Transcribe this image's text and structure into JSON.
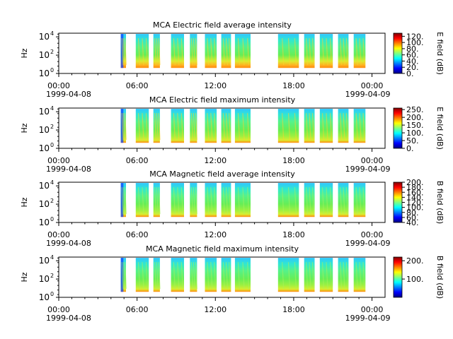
{
  "figure": {
    "x_ticks": [
      "00:00",
      "06:00",
      "12:00",
      "18:00",
      "00:00"
    ],
    "x_ticks_hours": [
      0,
      6,
      12,
      18,
      24
    ],
    "x_range_hours": [
      0,
      25
    ],
    "date_start": "1999-04-08",
    "date_end": "1999-04-09"
  },
  "chart_data": [
    {
      "type": "heatmap",
      "title": "MCA  Electric field average intensity",
      "ylabel": "Hz",
      "yscale": "log",
      "ylim_exp": [
        0,
        4.4
      ],
      "ytick_exps": [
        0,
        2,
        4
      ],
      "ytick_labels": [
        "10",
        "10",
        "10"
      ],
      "ytick_sup": [
        "0",
        "2",
        "4"
      ],
      "colorbar": {
        "label": "E field (dB)",
        "range": [
          0,
          130
        ],
        "ticks": [
          0,
          20,
          40,
          60,
          80,
          100,
          120
        ],
        "tick_labels": [
          "0.",
          "20.",
          "40.",
          "60.",
          "80.",
          "100.",
          "120."
        ]
      },
      "data_blocks_hours": [
        [
          4.75,
          5.15
        ],
        [
          5.9,
          6.9
        ],
        [
          7.25,
          7.75
        ],
        [
          8.6,
          9.6
        ],
        [
          10.05,
          10.6
        ],
        [
          11.2,
          12.1
        ],
        [
          12.45,
          13.2
        ],
        [
          13.5,
          14.7
        ],
        [
          16.8,
          18.4
        ],
        [
          18.8,
          19.6
        ],
        [
          20.0,
          21.0
        ],
        [
          21.4,
          22.2
        ],
        [
          22.6,
          23.5
        ]
      ],
      "intensity_level": 0.5
    },
    {
      "type": "heatmap",
      "title": "MCA  Electric field maximum intensity",
      "ylabel": "Hz",
      "yscale": "log",
      "ylim_exp": [
        0,
        4.4
      ],
      "ytick_exps": [
        0,
        2,
        4
      ],
      "ytick_labels": [
        "10",
        "10",
        "10"
      ],
      "ytick_sup": [
        "0",
        "2",
        "4"
      ],
      "colorbar": {
        "label": "E field (dB)",
        "range": [
          0,
          260
        ],
        "ticks": [
          0,
          50,
          100,
          150,
          200,
          250
        ],
        "tick_labels": [
          "0.",
          "50.",
          "100.",
          "150.",
          "200.",
          "250."
        ]
      },
      "data_blocks_hours": [
        [
          4.75,
          5.15
        ],
        [
          5.9,
          6.9
        ],
        [
          7.25,
          7.75
        ],
        [
          8.6,
          9.6
        ],
        [
          10.05,
          10.6
        ],
        [
          11.2,
          12.1
        ],
        [
          12.45,
          13.2
        ],
        [
          13.5,
          14.7
        ],
        [
          16.8,
          18.4
        ],
        [
          18.8,
          19.6
        ],
        [
          20.0,
          21.0
        ],
        [
          21.4,
          22.2
        ],
        [
          22.6,
          23.5
        ]
      ],
      "intensity_level": 0.38
    },
    {
      "type": "heatmap",
      "title": "MCA  Magnetic field average intensity",
      "ylabel": "Hz",
      "yscale": "log",
      "ylim_exp": [
        0,
        4.4
      ],
      "ytick_exps": [
        0,
        2,
        4
      ],
      "ytick_labels": [
        "10",
        "10",
        "10"
      ],
      "ytick_sup": [
        "0",
        "2",
        "4"
      ],
      "colorbar": {
        "label": "B field (dB)",
        "range": [
          40,
          200
        ],
        "ticks": [
          40,
          60,
          80,
          100,
          120,
          140,
          160,
          180,
          200
        ],
        "tick_labels": [
          "40.",
          "60.",
          "80.",
          "100.",
          "120.",
          "140.",
          "160.",
          "180.",
          "200."
        ]
      },
      "data_blocks_hours": [
        [
          4.75,
          5.15
        ],
        [
          5.9,
          6.9
        ],
        [
          7.25,
          7.75
        ],
        [
          8.6,
          9.6
        ],
        [
          10.05,
          10.6
        ],
        [
          11.2,
          12.1
        ],
        [
          12.45,
          13.2
        ],
        [
          13.5,
          14.7
        ],
        [
          16.8,
          18.4
        ],
        [
          18.8,
          19.6
        ],
        [
          20.0,
          21.0
        ],
        [
          21.4,
          22.2
        ],
        [
          22.6,
          23.5
        ]
      ],
      "intensity_level": 0.42
    },
    {
      "type": "heatmap",
      "title": "MCA  Magnetic field maximum intensity",
      "ylabel": "Hz",
      "yscale": "log",
      "ylim_exp": [
        0,
        4.4
      ],
      "ytick_exps": [
        0,
        2,
        4
      ],
      "ytick_labels": [
        "10",
        "10",
        "10"
      ],
      "ytick_sup": [
        "0",
        "2",
        "4"
      ],
      "colorbar": {
        "label": "B field (dB)",
        "range": [
          0,
          220
        ],
        "ticks": [
          100,
          200
        ],
        "tick_labels": [
          "100.",
          "200."
        ]
      },
      "data_blocks_hours": [
        [
          4.75,
          5.15
        ],
        [
          5.9,
          6.9
        ],
        [
          7.25,
          7.75
        ],
        [
          8.6,
          9.6
        ],
        [
          10.05,
          10.6
        ],
        [
          11.2,
          12.1
        ],
        [
          12.45,
          13.2
        ],
        [
          13.5,
          14.7
        ],
        [
          16.8,
          18.4
        ],
        [
          18.8,
          19.6
        ],
        [
          20.0,
          21.0
        ],
        [
          21.4,
          22.2
        ],
        [
          22.6,
          23.5
        ]
      ],
      "intensity_level": 0.42
    }
  ]
}
